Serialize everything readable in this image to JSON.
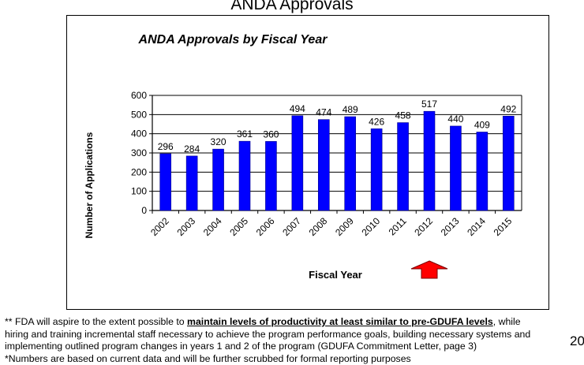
{
  "slide": {
    "title": "ANDA Approvals",
    "page_number": "20"
  },
  "footnote": {
    "line1_prefix": "** FDA will aspire to the extent possible to ",
    "line1_emphasis": "maintain levels of productivity at least similar to pre-GDUFA levels",
    "line1_suffix": ", while",
    "line2": "hiring and training incremental staff necessary to achieve the program performance goals, building necessary systems and",
    "line3": "implementing outlined program changes in years 1 and 2 of the program (GDUFA Commitment Letter, page 3)",
    "line4": "*Numbers are based on current data and will be further scrubbed for formal reporting purposes"
  },
  "chart_data": {
    "type": "bar",
    "title": "ANDA Approvals by Fiscal Year",
    "xlabel": "Fiscal Year",
    "ylabel": "Number of Applications",
    "categories": [
      "2002",
      "2003",
      "2004",
      "2005",
      "2006",
      "2007",
      "2008",
      "2009",
      "2010",
      "2011",
      "2012",
      "2013",
      "2014",
      "2015"
    ],
    "values": [
      296,
      284,
      320,
      361,
      360,
      494,
      474,
      489,
      426,
      458,
      517,
      440,
      409,
      492
    ],
    "ylim": [
      0,
      600
    ],
    "yticks": [
      0,
      100,
      200,
      300,
      400,
      500,
      600
    ],
    "grid": true,
    "bar_color": "#0000ff",
    "annotation": {
      "type": "red-up-arrow",
      "points_to": "2012",
      "color": "#ff0000"
    }
  }
}
